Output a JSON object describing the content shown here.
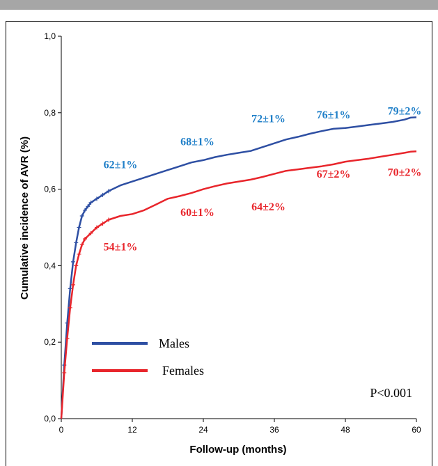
{
  "chart_data": {
    "type": "line",
    "xlabel": "Follow-up (months)",
    "ylabel": "Cumulative incidence of AVR (%)",
    "xlim": [
      0,
      60
    ],
    "ylim": [
      0,
      1.0
    ],
    "x_ticks": [
      0,
      12,
      24,
      36,
      48,
      60
    ],
    "x_tick_labels": [
      "0",
      "12",
      "24",
      "36",
      "48",
      "60"
    ],
    "y_ticks": [
      0,
      0.2,
      0.4,
      0.6,
      0.8,
      1.0
    ],
    "y_tick_labels": [
      "0,0",
      "0,2",
      "0,4",
      "0,6",
      "0,8",
      "1,0"
    ],
    "grid": false,
    "legend_position": "bottom-left",
    "series": [
      {
        "name": "Males",
        "color": "#2e4fa3",
        "label_color": "#1f7fc8",
        "x": [
          0,
          0.5,
          1,
          1.5,
          2,
          2.5,
          3,
          3.5,
          4,
          4.5,
          5,
          6,
          7,
          8,
          10,
          12,
          14,
          16,
          18,
          20,
          22,
          24,
          26,
          28,
          30,
          32,
          34,
          36,
          38,
          40,
          42,
          44,
          46,
          48,
          50,
          52,
          54,
          56,
          58,
          59,
          60
        ],
        "y": [
          0,
          0.14,
          0.25,
          0.34,
          0.41,
          0.46,
          0.5,
          0.53,
          0.545,
          0.555,
          0.565,
          0.575,
          0.585,
          0.595,
          0.61,
          0.62,
          0.63,
          0.64,
          0.65,
          0.66,
          0.67,
          0.676,
          0.684,
          0.69,
          0.695,
          0.7,
          0.71,
          0.72,
          0.73,
          0.737,
          0.745,
          0.752,
          0.758,
          0.76,
          0.764,
          0.768,
          0.772,
          0.776,
          0.782,
          0.787,
          0.788
        ]
      },
      {
        "name": "Females",
        "color": "#e8252b",
        "label_color": "#e8252b",
        "x": [
          0,
          0.5,
          1,
          1.5,
          2,
          2.5,
          3,
          3.5,
          4,
          5,
          6,
          7,
          8,
          10,
          12,
          14,
          16,
          18,
          20,
          22,
          24,
          26,
          28,
          30,
          32,
          34,
          36,
          38,
          40,
          42,
          44,
          46,
          48,
          50,
          52,
          54,
          56,
          58,
          59,
          60
        ],
        "y": [
          0,
          0.12,
          0.21,
          0.29,
          0.35,
          0.4,
          0.43,
          0.455,
          0.47,
          0.485,
          0.5,
          0.51,
          0.52,
          0.53,
          0.535,
          0.545,
          0.56,
          0.575,
          0.582,
          0.59,
          0.6,
          0.608,
          0.615,
          0.62,
          0.625,
          0.632,
          0.64,
          0.648,
          0.652,
          0.656,
          0.66,
          0.665,
          0.672,
          0.676,
          0.68,
          0.685,
          0.69,
          0.695,
          0.698,
          0.699
        ]
      }
    ],
    "annotations": [
      {
        "text": "62±1%",
        "series": "Males",
        "x": 10,
        "y": 0.655
      },
      {
        "text": "68±1%",
        "series": "Males",
        "x": 23,
        "y": 0.715
      },
      {
        "text": "72±1%",
        "series": "Males",
        "x": 35,
        "y": 0.775
      },
      {
        "text": "76±1%",
        "series": "Males",
        "x": 46,
        "y": 0.785
      },
      {
        "text": "79±2%",
        "series": "Males",
        "x": 58,
        "y": 0.795
      },
      {
        "text": "54±1%",
        "series": "Females",
        "x": 10,
        "y": 0.44
      },
      {
        "text": "60±1%",
        "series": "Females",
        "x": 23,
        "y": 0.53
      },
      {
        "text": "64±2%",
        "series": "Females",
        "x": 35,
        "y": 0.545
      },
      {
        "text": "67±2%",
        "series": "Females",
        "x": 46,
        "y": 0.63
      },
      {
        "text": "70±2%",
        "series": "Females",
        "x": 58,
        "y": 0.635
      }
    ],
    "p_value": "P<0.001"
  }
}
